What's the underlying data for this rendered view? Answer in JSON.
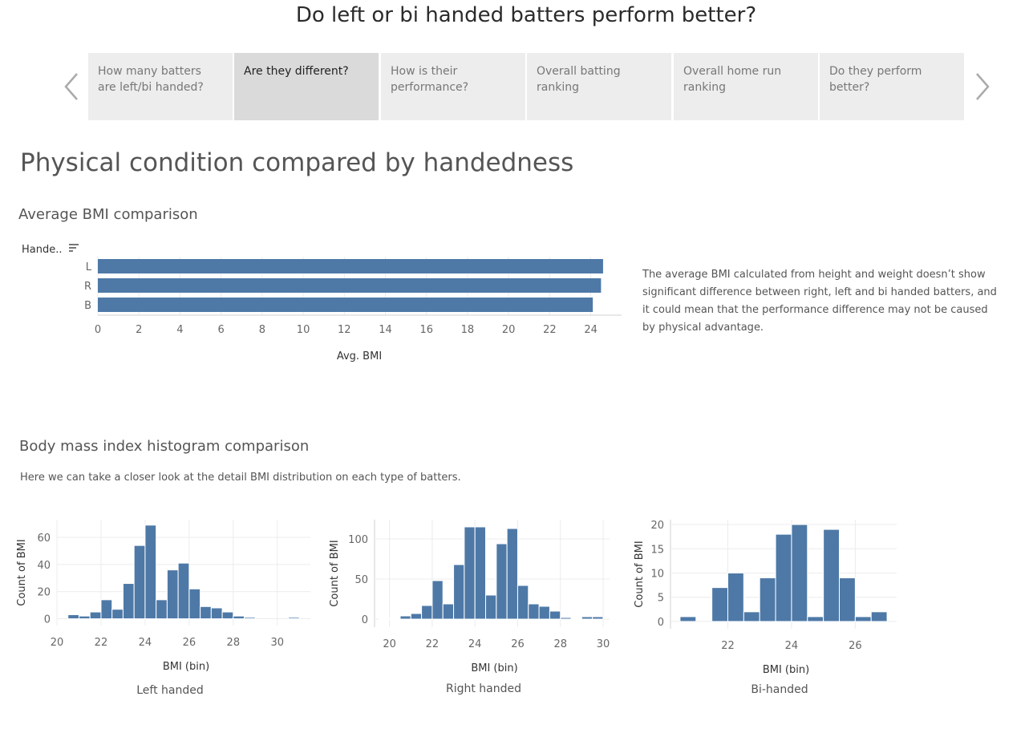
{
  "story": {
    "title": "Do left or bi handed batters perform better?",
    "tabs": [
      {
        "label": "How many batters are left/bi handed?",
        "active": false
      },
      {
        "label": "Are they different?",
        "active": true
      },
      {
        "label": "How is their performance?",
        "active": false
      },
      {
        "label": "Overall batting ranking",
        "active": false
      },
      {
        "label": "Overall home run ranking",
        "active": false
      },
      {
        "label": "Do they perform better?",
        "active": false
      }
    ]
  },
  "page_title": "Physical condition compared by handedness",
  "bmi_section": {
    "title": "Average BMI comparison",
    "description": "The average BMI calculated from height and weight doesn’t show significant difference between right, left and bi handed batters, and it could mean that the performance difference may not be caused by physical advantage."
  },
  "hist_section": {
    "title": "Body mass index histogram comparison",
    "description": "Here we can take a closer look at the detail BMI distribution on each type of batters."
  },
  "colors": {
    "bar": "#4e79a7",
    "grid": "#ececec",
    "axis": "#d0d0d0"
  },
  "chart_data": [
    {
      "type": "bar",
      "orientation": "horizontal",
      "title": "",
      "category_header": "Hande..",
      "categories": [
        "L",
        "R",
        "B"
      ],
      "values": [
        24.6,
        24.5,
        24.1
      ],
      "xlabel": "Avg. BMI",
      "xlim": [
        0,
        25.5
      ],
      "xticks": [
        0,
        2,
        4,
        6,
        8,
        10,
        12,
        14,
        16,
        18,
        20,
        22,
        24
      ],
      "grid": true
    },
    {
      "type": "bar",
      "subtitle": "Left handed",
      "xlabel": "BMI (bin)",
      "ylabel": "Count of BMI",
      "x": [
        20.5,
        21,
        21.5,
        22,
        22.5,
        23,
        23.5,
        24,
        24.5,
        25,
        25.5,
        26,
        26.5,
        27,
        27.5,
        28,
        28.5,
        30.5
      ],
      "values": [
        3,
        2,
        5,
        14,
        7,
        26,
        54,
        69,
        14,
        36,
        41,
        22,
        9,
        8,
        5,
        2,
        1,
        1
      ],
      "xlim": [
        20,
        31.5
      ],
      "ylim": [
        -5,
        73
      ],
      "xticks": [
        20,
        22,
        24,
        26,
        28,
        30
      ],
      "yticks": [
        0,
        20,
        40,
        60
      ],
      "grid": true
    },
    {
      "type": "bar",
      "subtitle": "Right handed",
      "xlabel": "BMI (bin)",
      "ylabel": "Count of BMI",
      "x": [
        19.5,
        20,
        20.5,
        21,
        21.5,
        22,
        22.5,
        23,
        23.5,
        24,
        24.5,
        25,
        25.5,
        26,
        26.5,
        27,
        27.5,
        28,
        28.5,
        29,
        29.5
      ],
      "values": [
        1,
        1,
        4,
        7,
        17,
        48,
        19,
        68,
        115,
        115,
        30,
        94,
        113,
        42,
        19,
        16,
        10,
        2,
        1,
        3,
        3
      ],
      "xlim": [
        19.3,
        30.3
      ],
      "ylim": [
        -10,
        124
      ],
      "xticks": [
        20,
        22,
        24,
        26,
        28,
        30
      ],
      "yticks": [
        0,
        50,
        100
      ],
      "grid": true
    },
    {
      "type": "bar",
      "subtitle": "Bi-handed",
      "xlabel": "BMI (bin)",
      "ylabel": "Count of BMI",
      "x": [
        20.5,
        21.5,
        22,
        22.5,
        23,
        23.5,
        24,
        24.5,
        25,
        25.5,
        26,
        26.5
      ],
      "values": [
        1,
        7,
        10,
        2,
        9,
        18,
        20,
        1,
        19,
        9,
        1,
        2
      ],
      "xlim": [
        20.2,
        27.3
      ],
      "ylim": [
        -1.5,
        21
      ],
      "xticks": [
        22,
        24,
        26
      ],
      "yticks": [
        0,
        5,
        10,
        15,
        20
      ],
      "grid": true
    }
  ]
}
